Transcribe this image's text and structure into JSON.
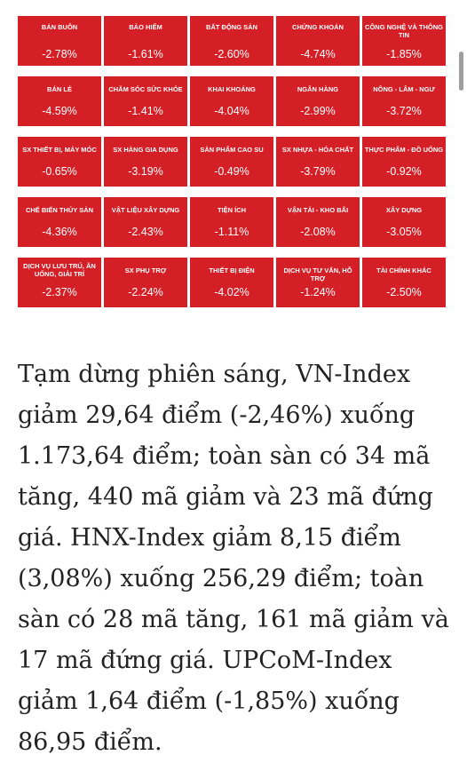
{
  "heatmap": {
    "tiles": [
      {
        "name": "BÁN BUÔN",
        "value": "-2.78%"
      },
      {
        "name": "BẢO HIỂM",
        "value": "-1.61%"
      },
      {
        "name": "BẤT ĐỘNG SẢN",
        "value": "-2.60%"
      },
      {
        "name": "CHỨNG KHOÁN",
        "value": "-4.74%"
      },
      {
        "name": "CÔNG NGHỆ VÀ THÔNG TIN",
        "value": "-1.85%"
      },
      {
        "name": "BÁN LẺ",
        "value": "-4.59%"
      },
      {
        "name": "CHĂM SÓC SỨC KHỎE",
        "value": "-1.41%"
      },
      {
        "name": "KHAI KHOÁNG",
        "value": "-4.04%"
      },
      {
        "name": "NGÂN HÀNG",
        "value": "-2.99%"
      },
      {
        "name": "NÔNG - LÂM - NGƯ",
        "value": "-3.72%"
      },
      {
        "name": "SX THIẾT BỊ, MÁY MÓC",
        "value": "-0.65%"
      },
      {
        "name": "SX HÀNG GIA DỤNG",
        "value": "-3.19%"
      },
      {
        "name": "SẢN PHẨM CAO SU",
        "value": "-0.49%"
      },
      {
        "name": "SX NHỰA - HÓA CHẤT",
        "value": "-3.79%"
      },
      {
        "name": "THỰC PHẨM - ĐỒ UỐNG",
        "value": "-0.92%"
      },
      {
        "name": "CHẾ BIẾN THỦY SẢN",
        "value": "-4.36%"
      },
      {
        "name": "VẬT LIỆU XÂY DỰNG",
        "value": "-2.43%"
      },
      {
        "name": "TIỆN ÍCH",
        "value": "-1.11%"
      },
      {
        "name": "VẬN TẢI - KHO BÃI",
        "value": "-2.08%"
      },
      {
        "name": "XÂY DỰNG",
        "value": "-3.05%"
      },
      {
        "name": "DỊCH VỤ LƯU TRÚ, ĂN UỐNG, GIẢI TRÍ",
        "value": "-2.37%"
      },
      {
        "name": "SX PHỤ TRỢ",
        "value": "-2.24%"
      },
      {
        "name": "THIẾT BỊ ĐIỆN",
        "value": "-4.02%"
      },
      {
        "name": "DỊCH VỤ TƯ VẤN, HỖ TRỢ",
        "value": "-1.24%"
      },
      {
        "name": "TÀI CHÍNH KHÁC",
        "value": "-2.50%"
      }
    ],
    "tile_color": "#d41f26",
    "text_color": "#ffffff"
  },
  "article": {
    "paragraph": "Tạm dừng phiên sáng, VN-Index giảm 29,64 điểm (-2,46%) xuống 1.173,64 điểm; toàn sàn có 34 mã tăng, 440 mã giảm và 23 mã đứng giá. HNX-Index giảm 8,15 điểm (3,08%) xuống 256,29 điểm; toàn sàn có 28 mã tăng, 161 mã giảm và 17 mã đứng giá. UPCoM-Index giảm 1,64 điểm (-1,85%) xuống 86,95 điểm."
  }
}
